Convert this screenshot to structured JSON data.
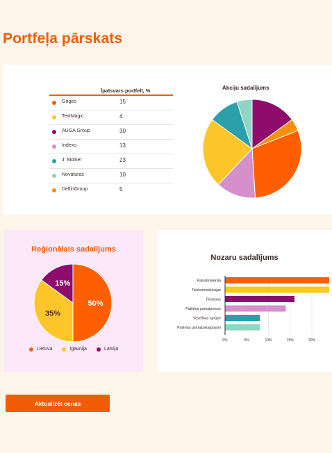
{
  "page": {
    "title": "Portfeļa pārskats"
  },
  "portfolio_table": {
    "value_header": "Īpatsvars portfelī, %",
    "rows": [
      {
        "name": "Grigeo",
        "value": "15",
        "color": "#f25c05"
      },
      {
        "name": "TextMagic",
        "value": "4",
        "color": "#ffc629"
      },
      {
        "name": "AUGA Group",
        "value": "30",
        "color": "#8e0c6c"
      },
      {
        "name": "Indexo",
        "value": "13",
        "color": "#d58fcb"
      },
      {
        "name": "J. Molner",
        "value": "23",
        "color": "#2b9faa"
      },
      {
        "name": "Novaturas",
        "value": "10",
        "color": "#8fd4c5"
      },
      {
        "name": "DelfinGroup",
        "value": "5",
        "color": "#f5900a"
      }
    ]
  },
  "buttons": {
    "refresh_label": "Aktualizēt cenas"
  },
  "chart_data": [
    {
      "type": "pie",
      "title": "Akciju sadalījums",
      "start_angle_deg": 0,
      "slices": [
        {
          "value": 15,
          "color": "#8e0c6c"
        },
        {
          "value": 4,
          "color": "#f5900a"
        },
        {
          "value": 30,
          "color": "#ff5f00"
        },
        {
          "value": 13,
          "color": "#d58fcb"
        },
        {
          "value": 23,
          "color": "#ffc629"
        },
        {
          "value": 10,
          "color": "#2b9faa"
        },
        {
          "value": 5,
          "color": "#8fd4c5"
        }
      ]
    },
    {
      "type": "pie",
      "title": "Reģionālais sadalījums",
      "start_angle_deg": 0,
      "slices": [
        {
          "label": "Lietuva",
          "value": 50,
          "value_label": "50%",
          "color": "#ff5f00"
        },
        {
          "label": "Igaunija",
          "value": 35,
          "value_label": "35%",
          "color": "#ffc629"
        },
        {
          "label": "Latvija",
          "value": 15,
          "value_label": "15%",
          "color": "#8e0c6c"
        }
      ],
      "legend": "bottom"
    },
    {
      "type": "bar",
      "orientation": "horizontal",
      "title": "Nozaru sadalījums",
      "categories": [
        "Pamatmateriāli",
        "Telekomunikācijas",
        "Finanses",
        "Patēriņa pamatpreces",
        "Veselības aprūpe",
        "Patēriņa pamatpakalpojumi"
      ],
      "values": [
        24,
        24,
        16,
        14,
        8,
        8
      ],
      "colors": [
        "#ff5f00",
        "#ffc629",
        "#8e0c6c",
        "#d58fcb",
        "#2b9faa",
        "#8fd4c5"
      ],
      "xlim": [
        0,
        24
      ],
      "x_ticks": [
        0,
        5,
        10,
        15,
        20
      ],
      "x_tick_labels": [
        "0%",
        "5%",
        "10%",
        "15%",
        "20%"
      ],
      "grid": true
    }
  ]
}
